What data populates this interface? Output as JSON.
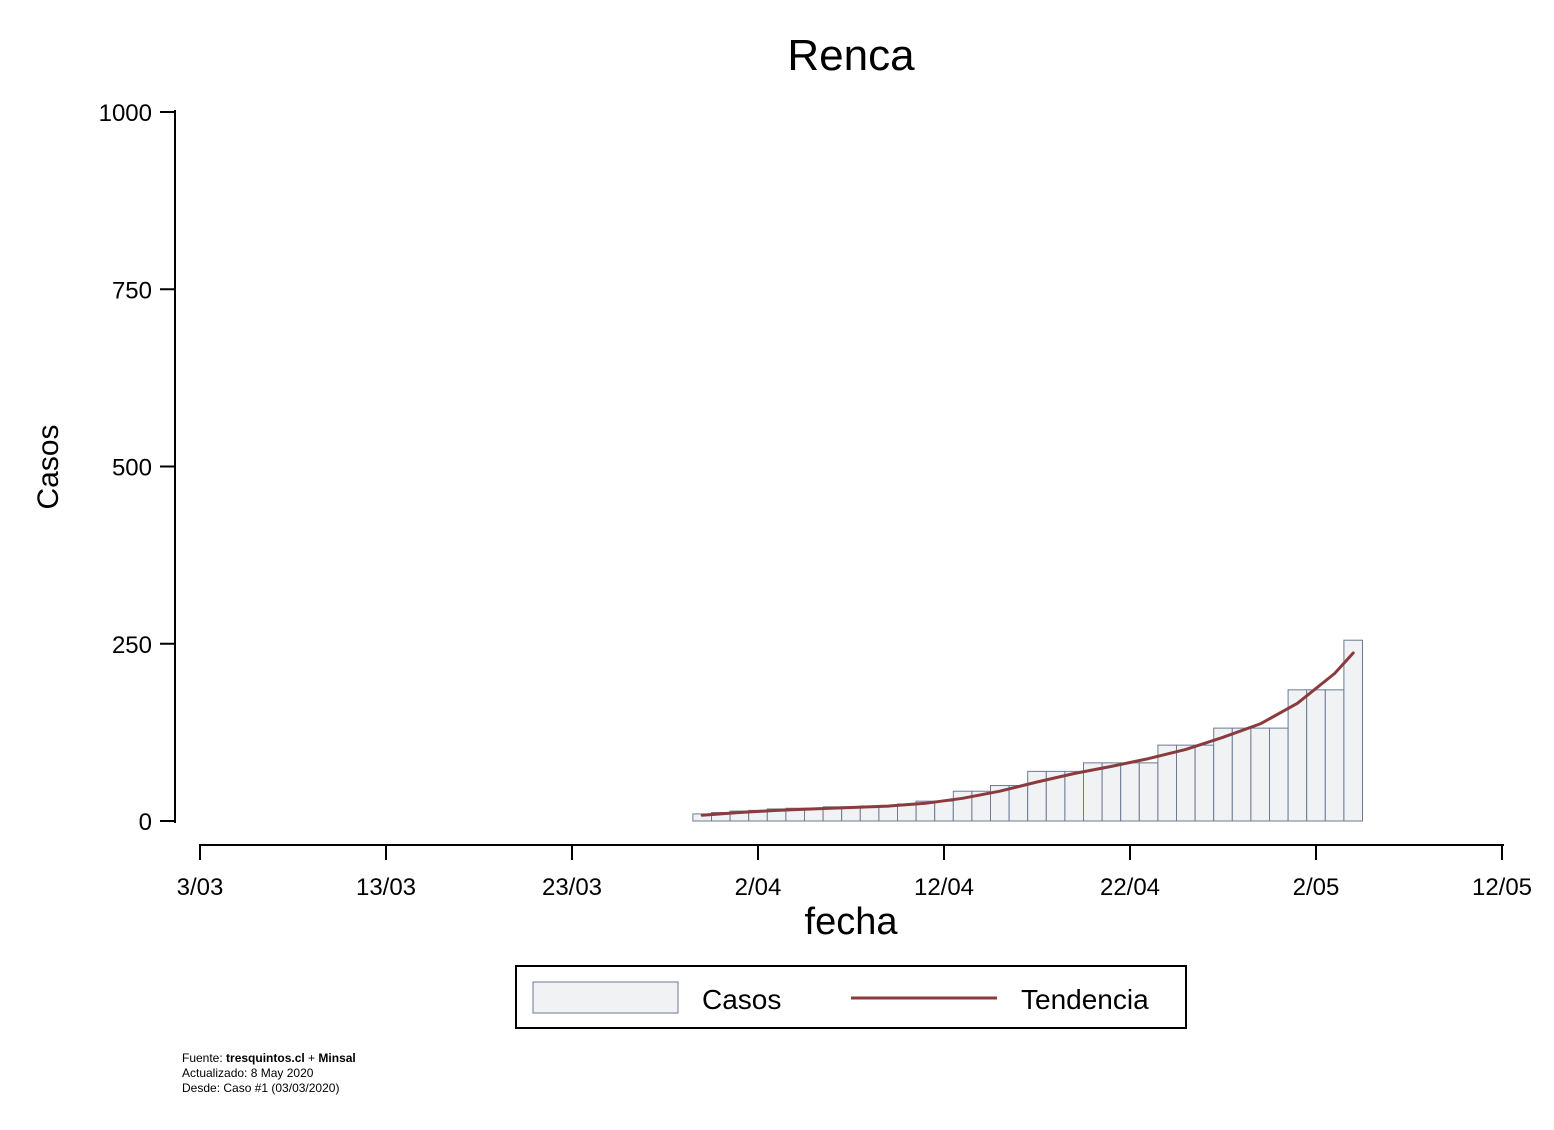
{
  "chart_data": {
    "type": "bar",
    "title": "Renca",
    "xlabel": "fecha",
    "ylabel": "Casos",
    "ylim": [
      0,
      1000
    ],
    "yticks": [
      "0",
      "250",
      "500",
      "750",
      "1000"
    ],
    "xticks": [
      "3/03",
      "13/03",
      "23/03",
      "2/04",
      "12/04",
      "22/04",
      "2/05",
      "12/05"
    ],
    "grid": false,
    "legend_position": "bottom",
    "colors": {
      "bar_fill": "#f1f2f4",
      "bar_stroke": "#6b7a96",
      "trend": "#8b3a3e"
    },
    "series": [
      {
        "name": "Casos",
        "kind": "bar",
        "x": [
          "30/03",
          "31/03",
          "1/04",
          "2/04",
          "3/04",
          "4/04",
          "5/04",
          "6/04",
          "7/04",
          "8/04",
          "9/04",
          "10/04",
          "11/04",
          "12/04",
          "13/04",
          "14/04",
          "15/04",
          "16/04",
          "17/04",
          "18/04",
          "19/04",
          "20/04",
          "21/04",
          "22/04",
          "23/04",
          "24/04",
          "25/04",
          "26/04",
          "27/04",
          "28/04",
          "29/04",
          "30/04",
          "1/05",
          "2/05",
          "3/05",
          "4/05"
        ],
        "values": [
          10,
          12,
          14,
          15,
          17,
          18,
          18,
          20,
          20,
          21,
          22,
          24,
          28,
          28,
          42,
          42,
          50,
          50,
          70,
          70,
          70,
          82,
          82,
          82,
          82,
          107,
          107,
          107,
          131,
          131,
          131,
          131,
          185,
          185,
          185,
          255
        ]
      },
      {
        "name": "Tendencia",
        "kind": "line",
        "x": [
          "30/03",
          "1/04",
          "3/04",
          "5/04",
          "7/04",
          "9/04",
          "11/04",
          "13/04",
          "15/04",
          "17/04",
          "19/04",
          "21/04",
          "23/04",
          "25/04",
          "27/04",
          "29/04",
          "1/05",
          "3/05",
          "4/05"
        ],
        "values": [
          8,
          12,
          15,
          17,
          19,
          21,
          25,
          32,
          42,
          55,
          67,
          77,
          88,
          101,
          118,
          137,
          166,
          208,
          237
        ]
      }
    ]
  },
  "notes": {
    "fuente_prefix": "Fuente: ",
    "fuente_site": "tresquintos.cl",
    "fuente_plus": " + ",
    "fuente_org": "Minsal",
    "actualizado": "Actualizado: 8 May 2020",
    "desde": "Desde: Caso #1  (03/03/2020)"
  }
}
